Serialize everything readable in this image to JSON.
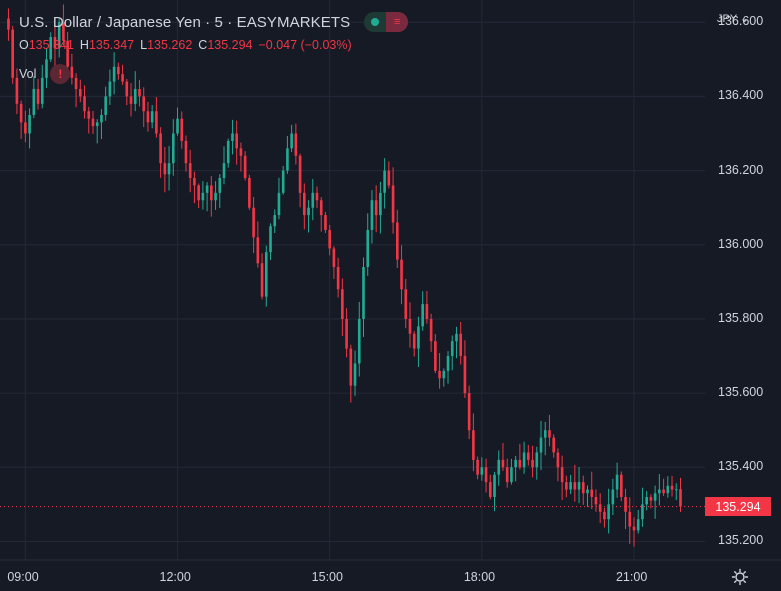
{
  "header": {
    "title": "U.S. Dollar / Japanese Yen · 5 · EASYMARKETS",
    "ohlc": {
      "o_label": "O",
      "o_value": "135.341",
      "h_label": "H",
      "h_value": "135.347",
      "l_label": "L",
      "l_value": "135.262",
      "c_label": "C",
      "c_value": "135.294",
      "change": "−0.047 (−0.03%)"
    },
    "vol_label": "Vol",
    "market_status_icon": "market-open-dot-icon",
    "warning_icon": "exclamation-icon"
  },
  "currency": "JPY ⌄",
  "last_price_tag": "135.294",
  "settings_icon": "gear-icon",
  "colors": {
    "background": "#161a25",
    "grid": "#242938",
    "up": "#22ab94",
    "down": "#f23645",
    "text": "#d1d4dc"
  },
  "chart_data": {
    "type": "candlestick",
    "symbol": "U.S. Dollar / Japanese Yen",
    "interval": "5",
    "ylim": [
      135.15,
      136.66
    ],
    "y_ticks": [
      {
        "value": 136.6,
        "label": "136.600"
      },
      {
        "value": 136.4,
        "label": "136.400"
      },
      {
        "value": 136.2,
        "label": "136.200"
      },
      {
        "value": 136.0,
        "label": "136.000"
      },
      {
        "value": 135.8,
        "label": "135.800"
      },
      {
        "value": 135.6,
        "label": "135.600"
      },
      {
        "value": 135.4,
        "label": "135.400"
      },
      {
        "value": 135.2,
        "label": "135.200"
      }
    ],
    "x_ticks": [
      {
        "value": 9,
        "label": "09:00"
      },
      {
        "value": 12,
        "label": "12:00"
      },
      {
        "value": 15,
        "label": "15:00"
      },
      {
        "value": 18,
        "label": "18:00"
      },
      {
        "value": 21,
        "label": "21:00"
      }
    ],
    "x_range": [
      8.5,
      22.4
    ],
    "last_price": 135.294,
    "grid": true,
    "candle_start_hour": 8.6667,
    "candle_interval_minutes": 5,
    "path": [
      136.58,
      136.45,
      136.38,
      136.33,
      136.3,
      136.35,
      136.42,
      136.38,
      136.45,
      136.5,
      136.56,
      136.53,
      136.6,
      136.55,
      136.48,
      136.45,
      136.42,
      136.4,
      136.36,
      136.34,
      136.32,
      136.33,
      136.35,
      136.4,
      136.44,
      136.48,
      136.46,
      136.44,
      136.4,
      136.38,
      136.42,
      136.4,
      136.36,
      136.33,
      136.36,
      136.3,
      136.22,
      136.19,
      136.22,
      136.3,
      136.34,
      136.28,
      136.22,
      136.18,
      136.16,
      136.12,
      136.14,
      136.16,
      136.12,
      136.14,
      136.18,
      136.22,
      136.28,
      136.3,
      136.26,
      136.24,
      136.18,
      136.1,
      136.02,
      135.95,
      135.86,
      135.98,
      136.05,
      136.08,
      136.14,
      136.2,
      136.26,
      136.3,
      136.24,
      136.14,
      136.08,
      136.1,
      136.14,
      136.12,
      136.08,
      136.04,
      135.99,
      135.94,
      135.88,
      135.8,
      135.72,
      135.62,
      135.68,
      135.8,
      135.94,
      136.04,
      136.12,
      136.08,
      136.14,
      136.2,
      136.16,
      136.06,
      135.96,
      135.88,
      135.8,
      135.76,
      135.72,
      135.78,
      135.84,
      135.8,
      135.74,
      135.66,
      135.64,
      135.66,
      135.7,
      135.74,
      135.76,
      135.7,
      135.6,
      135.5,
      135.42,
      135.38,
      135.4,
      135.36,
      135.32,
      135.38,
      135.42,
      135.4,
      135.36,
      135.4,
      135.42,
      135.4,
      135.44,
      135.42,
      135.4,
      135.44,
      135.48,
      135.5,
      135.48,
      135.44,
      135.4,
      135.36,
      135.34,
      135.36,
      135.34,
      135.36,
      135.33,
      135.34,
      135.32,
      135.3,
      135.28,
      135.26,
      135.3,
      135.34,
      135.38,
      135.32,
      135.28,
      135.24,
      135.23,
      135.26,
      135.3,
      135.32,
      135.31,
      135.33,
      135.34,
      135.33,
      135.35,
      135.34,
      135.341,
      135.294
    ]
  }
}
